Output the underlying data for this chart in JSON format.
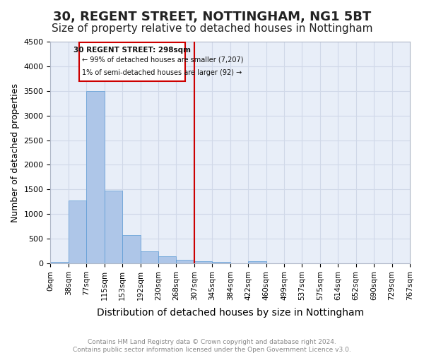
{
  "title": "30, REGENT STREET, NOTTINGHAM, NG1 5BT",
  "subtitle": "Size of property relative to detached houses in Nottingham",
  "xlabel": "Distribution of detached houses by size in Nottingham",
  "ylabel": "Number of detached properties",
  "bin_edges": [
    0,
    38,
    77,
    115,
    153,
    192,
    230,
    268,
    307,
    345,
    384,
    422,
    460,
    499,
    537,
    575,
    614,
    652,
    690,
    729,
    767
  ],
  "bin_labels": [
    "0sqm",
    "38sqm",
    "77sqm",
    "115sqm",
    "153sqm",
    "192sqm",
    "230sqm",
    "268sqm",
    "307sqm",
    "345sqm",
    "384sqm",
    "422sqm",
    "460sqm",
    "499sqm",
    "537sqm",
    "575sqm",
    "614sqm",
    "652sqm",
    "690sqm",
    "729sqm",
    "767sqm"
  ],
  "bar_values": [
    30,
    1270,
    3500,
    1480,
    580,
    250,
    140,
    70,
    40,
    30,
    0,
    50,
    0,
    0,
    0,
    0,
    0,
    0,
    0,
    0
  ],
  "bar_color": "#aec6e8",
  "bar_edge_color": "#5b9bd5",
  "vline_x": 8,
  "vline_color": "#cc0000",
  "ylim": [
    0,
    4500
  ],
  "yticks": [
    0,
    500,
    1000,
    1500,
    2000,
    2500,
    3000,
    3500,
    4000,
    4500
  ],
  "annotation_title": "30 REGENT STREET: 298sqm",
  "annotation_line1": "← 99% of detached houses are smaller (7,207)",
  "annotation_line2": "1% of semi-detached houses are larger (92) →",
  "annotation_box_color": "#ffffff",
  "annotation_box_edge": "#cc0000",
  "grid_color": "#d0d8e8",
  "background_color": "#e8eef8",
  "footer_line1": "Contains HM Land Registry data © Crown copyright and database right 2024.",
  "footer_line2": "Contains public sector information licensed under the Open Government Licence v3.0.",
  "title_fontsize": 13,
  "subtitle_fontsize": 11,
  "ylabel_fontsize": 9,
  "xlabel_fontsize": 10
}
